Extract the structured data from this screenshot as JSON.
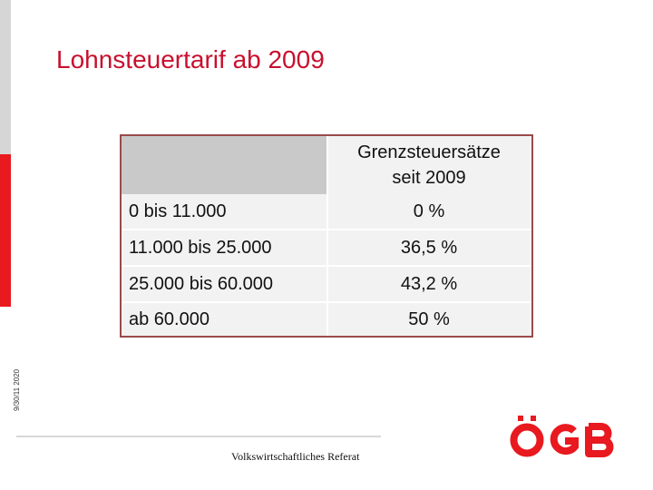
{
  "slide": {
    "title": "Lohnsteuertarif ab 2009",
    "side_date": "9/30/11 2020",
    "footer": "Volkswirtschaftliches Referat",
    "logo_text": "ÖGB"
  },
  "table": {
    "header_left": "",
    "header_right_line1": "Grenzsteuersätze",
    "header_right_line2": "seit  2009",
    "rows": [
      {
        "range": "0 bis 11.000",
        "rate": "0 %"
      },
      {
        "range": "11.000 bis 25.000",
        "rate": "36,5 %"
      },
      {
        "range": "25.000 bis 60.000",
        "rate": "43,2 %"
      },
      {
        "range": "ab 60.000",
        "rate": "50 %"
      }
    ]
  },
  "colors": {
    "accent_red": "#e8191f",
    "title_red": "#c8102e",
    "side_gray": "#d6d6d6",
    "header_gray": "#c9c9c9",
    "border": "#9a4a4a"
  }
}
